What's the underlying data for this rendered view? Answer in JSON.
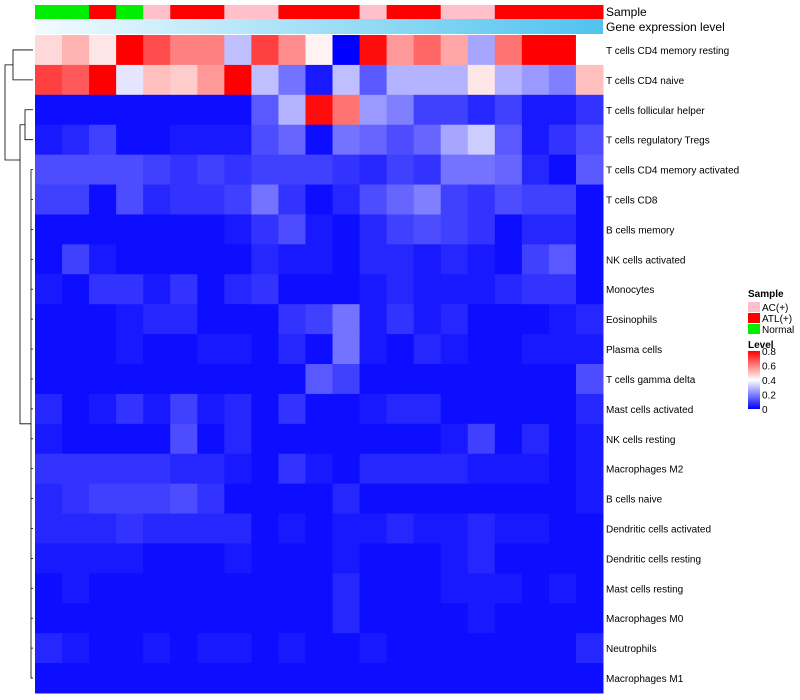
{
  "chart_data": {
    "type": "heatmap",
    "title": "",
    "annotations": [
      {
        "name": "Sample",
        "type": "categorical"
      },
      {
        "name": "Gene expression level",
        "type": "gradient",
        "from": "#f2fbff",
        "to": "#4fc3ef"
      }
    ],
    "sample_groups": [
      "Normal",
      "Normal",
      "ATL(+)",
      "Normal",
      "AC(+)",
      "ATL(+)",
      "ATL(+)",
      "AC(+)",
      "AC(+)",
      "ATL(+)",
      "ATL(+)",
      "ATL(+)",
      "AC(+)",
      "ATL(+)",
      "ATL(+)",
      "AC(+)",
      "AC(+)",
      "ATL(+)",
      "ATL(+)",
      "ATL(+)",
      "ATL(+)"
    ],
    "sample_legend": {
      "title": "Sample",
      "items": [
        {
          "label": "AC(+)",
          "color": "#ffc0cb"
        },
        {
          "label": "ATL(+)",
          "color": "#ff0000"
        },
        {
          "label": "Normal",
          "color": "#00ee00"
        }
      ]
    },
    "level_legend": {
      "title": "Level",
      "ticks": [
        "0.8",
        "0.6",
        "0.4",
        "0.2",
        "0"
      ],
      "min": 0,
      "max": 0.8
    },
    "colors": {
      "low": "#0000ff",
      "mid": "#ffffff",
      "high": "#ff0000"
    },
    "rows": [
      "T cells CD4 memory resting",
      "T cells CD4 naive",
      "T cells follicular helper",
      "T cells regulatory  Tregs",
      "T cells CD4 memory activated",
      "T cells CD8",
      "B cells memory",
      "NK cells activated",
      "Monocytes",
      "Eosinophils",
      "Plasma cells",
      "T cells gamma delta",
      "Mast cells activated",
      "NK cells resting",
      "Macrophages M2",
      "B cells naive",
      "Dendritic cells activated",
      "Dendritic cells resting",
      "Mast cells resting",
      "Macrophages M0",
      "Neutrophils",
      "Macrophages M1"
    ],
    "values": [
      [
        0.46,
        0.52,
        0.44,
        0.8,
        0.68,
        0.6,
        0.6,
        0.3,
        0.7,
        0.58,
        0.42,
        0.0,
        0.78,
        0.56,
        0.64,
        0.54,
        0.26,
        0.62,
        0.8,
        0.8,
        0.4
      ],
      [
        0.7,
        0.66,
        0.8,
        0.36,
        0.5,
        0.48,
        0.56,
        0.8,
        0.3,
        0.18,
        0.04,
        0.3,
        0.14,
        0.28,
        0.28,
        0.28,
        0.44,
        0.28,
        0.24,
        0.2,
        0.5
      ],
      [
        0.02,
        0.02,
        0.02,
        0.02,
        0.02,
        0.02,
        0.02,
        0.02,
        0.14,
        0.28,
        0.78,
        0.62,
        0.24,
        0.2,
        0.1,
        0.1,
        0.06,
        0.1,
        0.04,
        0.04,
        0.08
      ],
      [
        0.04,
        0.06,
        0.1,
        0.02,
        0.02,
        0.04,
        0.04,
        0.04,
        0.12,
        0.16,
        0.02,
        0.18,
        0.16,
        0.12,
        0.16,
        0.26,
        0.32,
        0.14,
        0.04,
        0.08,
        0.12
      ],
      [
        0.12,
        0.12,
        0.12,
        0.12,
        0.1,
        0.08,
        0.1,
        0.08,
        0.1,
        0.1,
        0.1,
        0.08,
        0.06,
        0.1,
        0.08,
        0.18,
        0.18,
        0.16,
        0.06,
        0.02,
        0.14
      ],
      [
        0.1,
        0.1,
        0.02,
        0.12,
        0.06,
        0.08,
        0.08,
        0.1,
        0.18,
        0.08,
        0.02,
        0.06,
        0.12,
        0.16,
        0.2,
        0.1,
        0.08,
        0.12,
        0.1,
        0.1,
        0.02
      ],
      [
        0.02,
        0.02,
        0.02,
        0.02,
        0.02,
        0.02,
        0.02,
        0.04,
        0.08,
        0.12,
        0.04,
        0.02,
        0.06,
        0.1,
        0.12,
        0.1,
        0.08,
        0.02,
        0.06,
        0.06,
        0.02
      ],
      [
        0.02,
        0.1,
        0.04,
        0.02,
        0.02,
        0.02,
        0.02,
        0.02,
        0.06,
        0.04,
        0.04,
        0.02,
        0.06,
        0.06,
        0.04,
        0.06,
        0.04,
        0.02,
        0.1,
        0.14,
        0.02
      ],
      [
        0.04,
        0.02,
        0.08,
        0.08,
        0.04,
        0.08,
        0.02,
        0.06,
        0.08,
        0.02,
        0.02,
        0.02,
        0.04,
        0.06,
        0.04,
        0.04,
        0.04,
        0.06,
        0.08,
        0.08,
        0.02
      ],
      [
        0.02,
        0.02,
        0.02,
        0.04,
        0.06,
        0.06,
        0.02,
        0.02,
        0.02,
        0.08,
        0.1,
        0.18,
        0.04,
        0.08,
        0.04,
        0.06,
        0.02,
        0.02,
        0.02,
        0.04,
        0.06
      ],
      [
        0.02,
        0.02,
        0.02,
        0.04,
        0.02,
        0.02,
        0.04,
        0.04,
        0.02,
        0.06,
        0.02,
        0.18,
        0.04,
        0.02,
        0.06,
        0.04,
        0.02,
        0.02,
        0.04,
        0.04,
        0.04
      ],
      [
        0.02,
        0.02,
        0.02,
        0.02,
        0.02,
        0.02,
        0.02,
        0.02,
        0.02,
        0.02,
        0.14,
        0.1,
        0.02,
        0.02,
        0.02,
        0.02,
        0.02,
        0.02,
        0.02,
        0.02,
        0.12
      ],
      [
        0.06,
        0.02,
        0.04,
        0.08,
        0.04,
        0.1,
        0.04,
        0.06,
        0.02,
        0.08,
        0.02,
        0.02,
        0.04,
        0.06,
        0.06,
        0.02,
        0.02,
        0.02,
        0.02,
        0.02,
        0.06
      ],
      [
        0.04,
        0.02,
        0.02,
        0.02,
        0.02,
        0.12,
        0.02,
        0.06,
        0.02,
        0.02,
        0.02,
        0.02,
        0.02,
        0.02,
        0.02,
        0.04,
        0.1,
        0.02,
        0.06,
        0.02,
        0.04
      ],
      [
        0.08,
        0.08,
        0.08,
        0.08,
        0.08,
        0.06,
        0.06,
        0.04,
        0.02,
        0.08,
        0.04,
        0.02,
        0.06,
        0.06,
        0.06,
        0.06,
        0.04,
        0.04,
        0.04,
        0.02,
        0.04
      ],
      [
        0.06,
        0.08,
        0.1,
        0.1,
        0.1,
        0.12,
        0.08,
        0.02,
        0.02,
        0.02,
        0.02,
        0.06,
        0.02,
        0.02,
        0.02,
        0.02,
        0.02,
        0.02,
        0.02,
        0.02,
        0.04
      ],
      [
        0.06,
        0.06,
        0.06,
        0.08,
        0.06,
        0.06,
        0.06,
        0.06,
        0.02,
        0.04,
        0.02,
        0.04,
        0.04,
        0.06,
        0.04,
        0.04,
        0.06,
        0.04,
        0.04,
        0.02,
        0.02
      ],
      [
        0.04,
        0.04,
        0.04,
        0.04,
        0.02,
        0.02,
        0.02,
        0.04,
        0.02,
        0.02,
        0.02,
        0.04,
        0.02,
        0.02,
        0.02,
        0.04,
        0.06,
        0.02,
        0.02,
        0.02,
        0.02
      ],
      [
        0.02,
        0.04,
        0.02,
        0.02,
        0.02,
        0.02,
        0.02,
        0.02,
        0.02,
        0.02,
        0.02,
        0.06,
        0.02,
        0.02,
        0.02,
        0.04,
        0.04,
        0.04,
        0.02,
        0.04,
        0.02
      ],
      [
        0.02,
        0.02,
        0.02,
        0.02,
        0.02,
        0.02,
        0.02,
        0.02,
        0.02,
        0.02,
        0.02,
        0.06,
        0.02,
        0.02,
        0.02,
        0.02,
        0.04,
        0.02,
        0.02,
        0.02,
        0.02
      ],
      [
        0.06,
        0.04,
        0.02,
        0.02,
        0.04,
        0.02,
        0.04,
        0.04,
        0.02,
        0.04,
        0.02,
        0.02,
        0.04,
        0.02,
        0.02,
        0.02,
        0.02,
        0.02,
        0.02,
        0.02,
        0.06
      ],
      [
        0.02,
        0.02,
        0.02,
        0.02,
        0.02,
        0.02,
        0.02,
        0.02,
        0.02,
        0.02,
        0.02,
        0.02,
        0.02,
        0.02,
        0.02,
        0.02,
        0.02,
        0.02,
        0.02,
        0.02,
        0.02
      ]
    ],
    "dendrogram": "rows",
    "legend_position": "right"
  }
}
